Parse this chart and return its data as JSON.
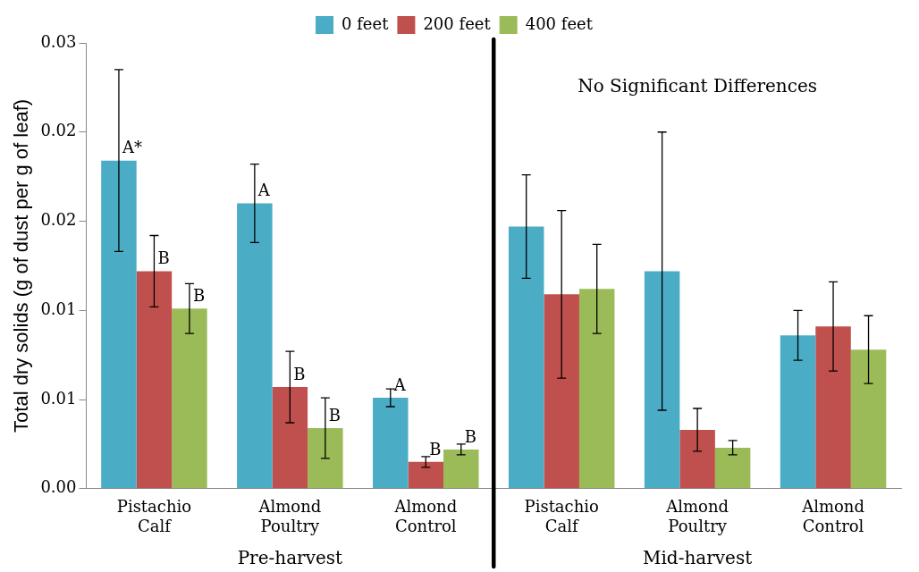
{
  "chart_data": {
    "type": "bar",
    "ylabel": "Total dry solids (g of dust per g of leaf)",
    "categories": [
      "Pistachio Calf",
      "Almond Poultry",
      "Almond Control",
      "Pistachio Calf",
      "Almond Poultry",
      "Almond Control"
    ],
    "series": [
      {
        "name": "0 feet",
        "color": "#4bacc6",
        "values": [
          0.0184,
          0.016,
          0.0051,
          0.0147,
          0.0122,
          0.0086
        ],
        "errors": [
          0.0051,
          0.0022,
          0.0005,
          0.0029,
          0.0078,
          0.0014
        ],
        "value_labels": [
          "A*",
          "A",
          "A",
          null,
          null,
          null
        ]
      },
      {
        "name": "200 feet",
        "color": "#c0504d",
        "values": [
          0.0122,
          0.0057,
          0.0015,
          0.0109,
          0.0033,
          0.0091
        ],
        "errors": [
          0.002,
          0.002,
          0.0003,
          0.0047,
          0.0012,
          0.0025
        ],
        "value_labels": [
          "B",
          "B",
          "B",
          null,
          null,
          null
        ]
      },
      {
        "name": "400 feet",
        "color": "#9bbb59",
        "values": [
          0.0101,
          0.0034,
          0.0022,
          0.0112,
          0.0023,
          0.0078
        ],
        "errors": [
          0.0014,
          0.0017,
          0.0003,
          0.0025,
          0.0004,
          0.0019
        ],
        "value_labels": [
          "B",
          "B",
          "B",
          null,
          null,
          null
        ]
      }
    ],
    "ylim": [
      0,
      0.025
    ],
    "yticks": [
      {
        "value": 0,
        "label": "0.00"
      },
      {
        "value": 0.005,
        "label": "0.01"
      },
      {
        "value": 0.01,
        "label": "0.01"
      },
      {
        "value": 0.015,
        "label": "0.02"
      },
      {
        "value": 0.02,
        "label": "0.02"
      },
      {
        "value": 0.025,
        "label": "0.03"
      }
    ],
    "annotations": [
      "Pre-harvest",
      "Mid-harvest",
      "No Significant Differences"
    ],
    "grid": false,
    "legend": "top"
  }
}
